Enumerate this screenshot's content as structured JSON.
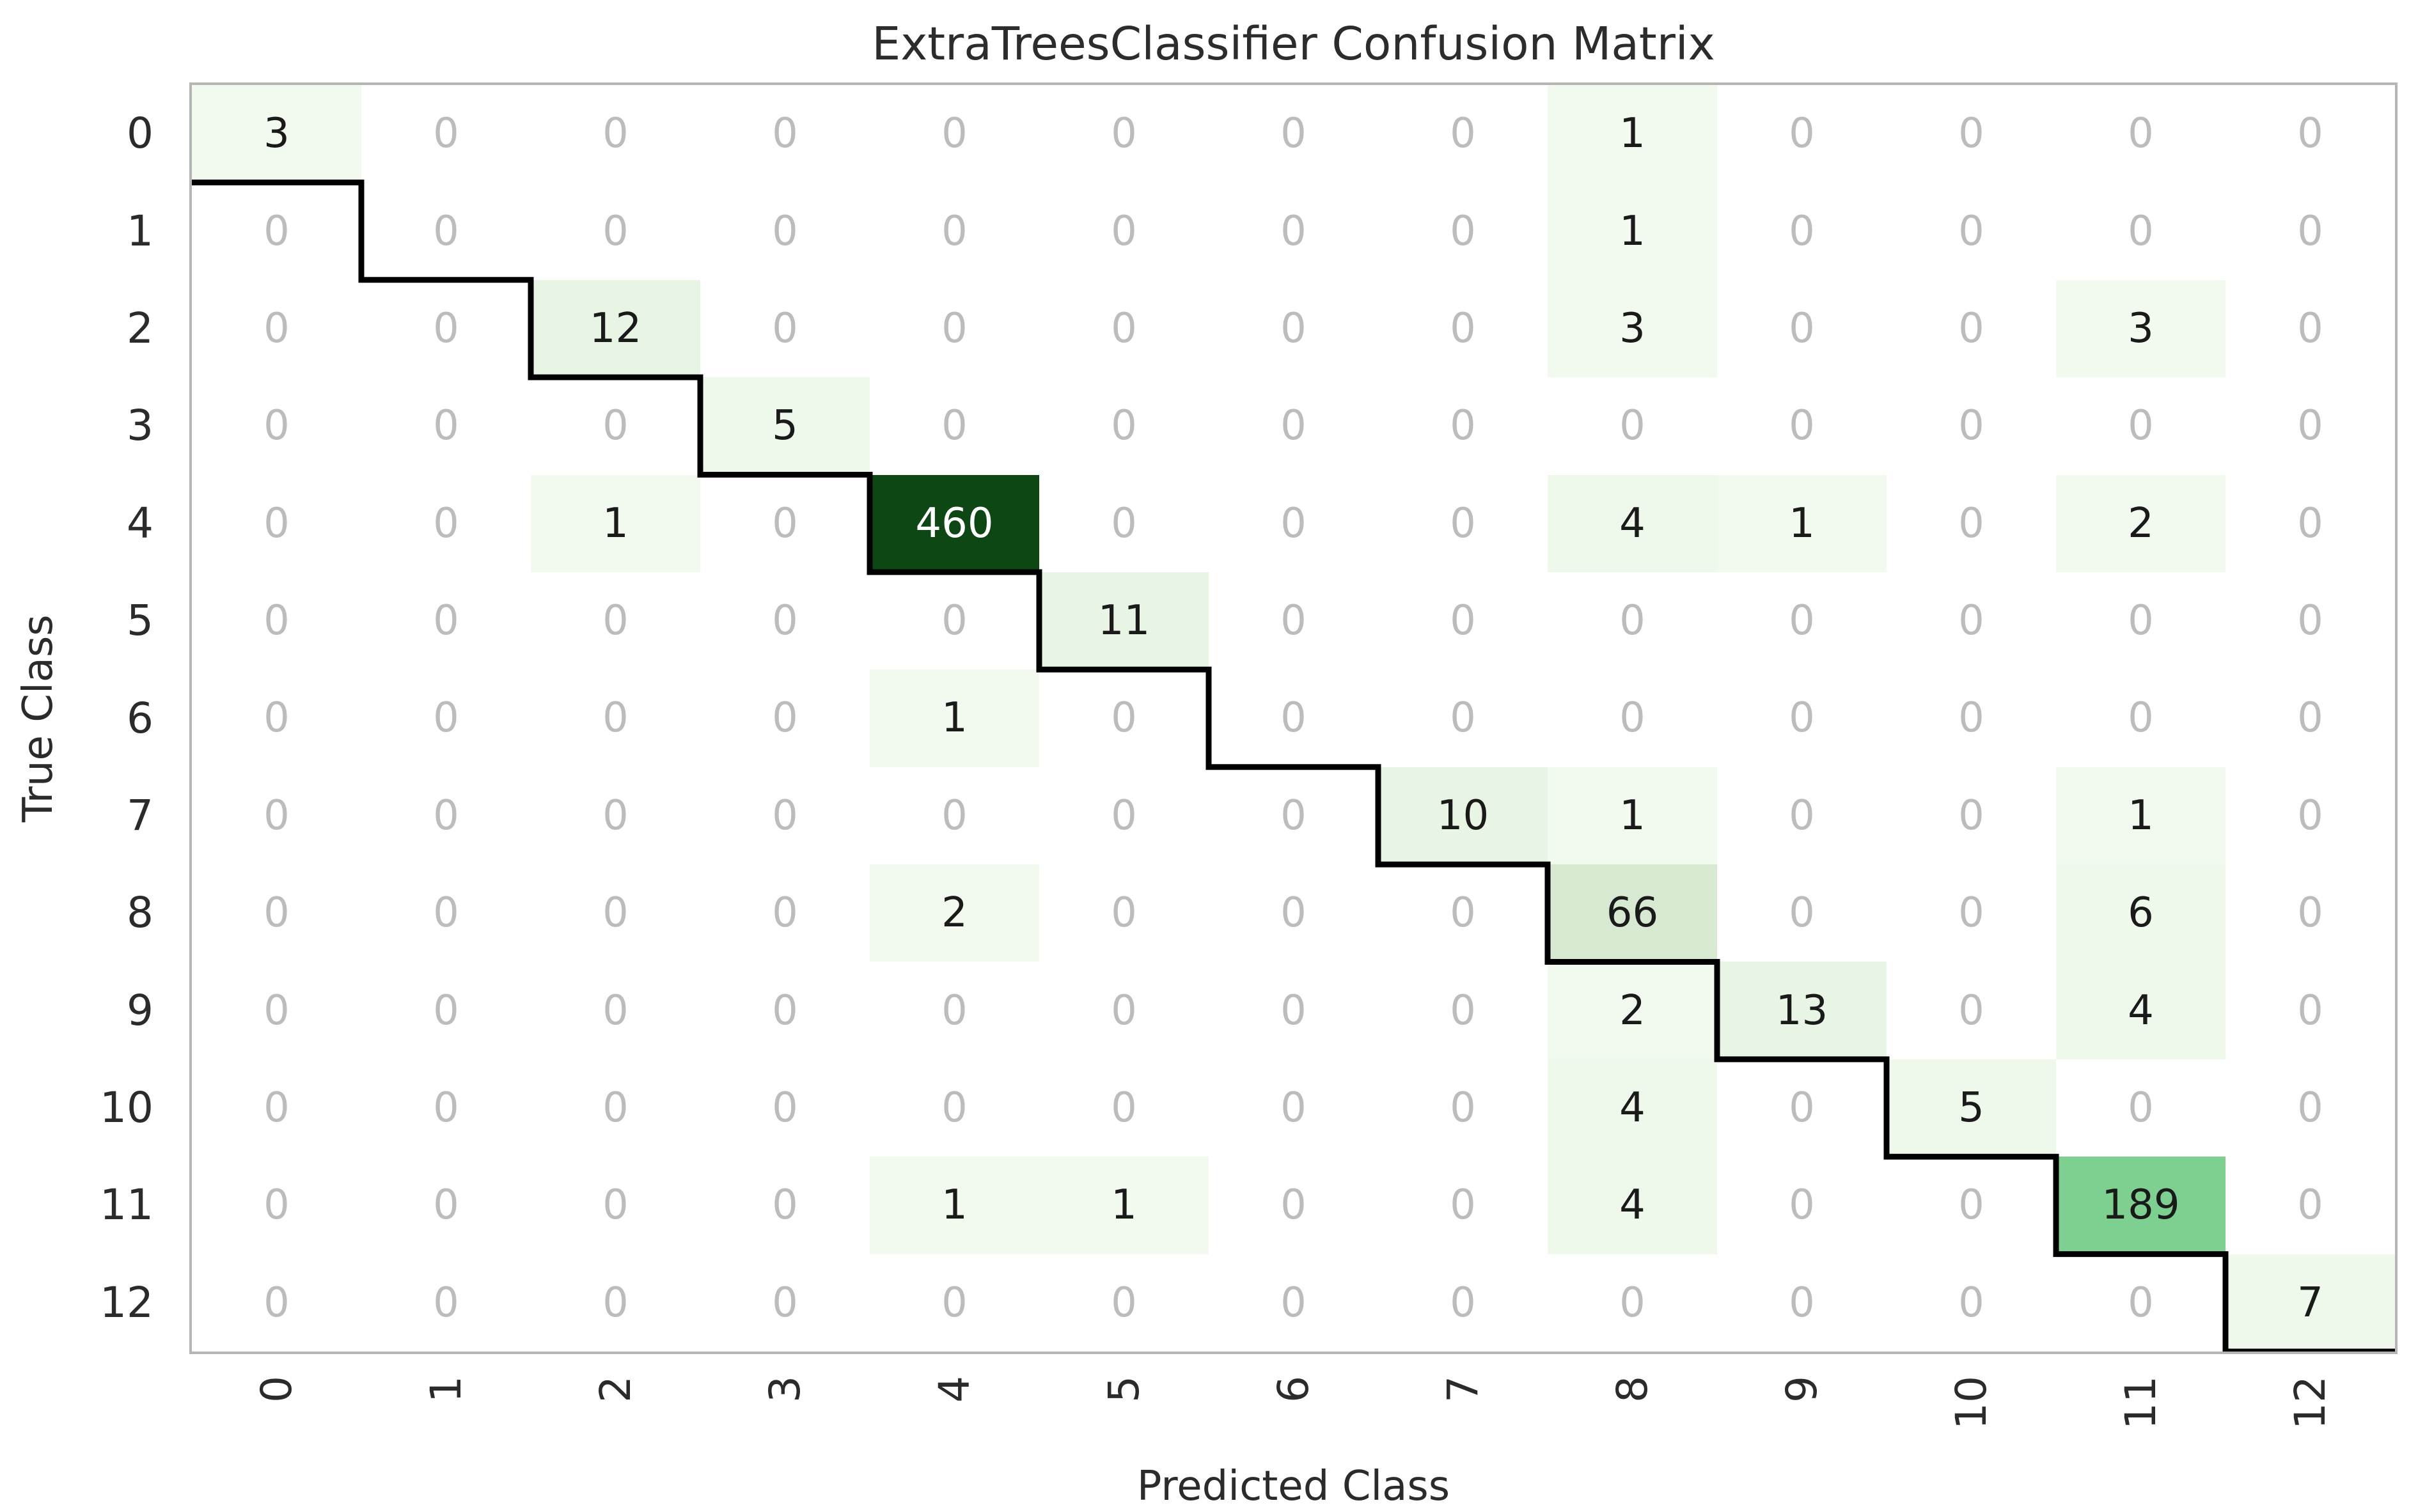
{
  "chart_data": {
    "type": "heatmap",
    "title": "ExtraTreesClassifier Confusion Matrix",
    "xlabel": "Predicted Class",
    "ylabel": "True Class",
    "x_tick_labels": [
      "0",
      "1",
      "2",
      "3",
      "4",
      "5",
      "6",
      "7",
      "8",
      "9",
      "10",
      "11",
      "12"
    ],
    "y_tick_labels": [
      "0",
      "1",
      "2",
      "3",
      "4",
      "5",
      "6",
      "7",
      "8",
      "9",
      "10",
      "11",
      "12"
    ],
    "matrix": [
      [
        3,
        0,
        0,
        0,
        0,
        0,
        0,
        0,
        1,
        0,
        0,
        0,
        0
      ],
      [
        0,
        0,
        0,
        0,
        0,
        0,
        0,
        0,
        1,
        0,
        0,
        0,
        0
      ],
      [
        0,
        0,
        12,
        0,
        0,
        0,
        0,
        0,
        3,
        0,
        0,
        3,
        0
      ],
      [
        0,
        0,
        0,
        5,
        0,
        0,
        0,
        0,
        0,
        0,
        0,
        0,
        0
      ],
      [
        0,
        0,
        1,
        0,
        460,
        0,
        0,
        0,
        4,
        1,
        0,
        2,
        0
      ],
      [
        0,
        0,
        0,
        0,
        0,
        11,
        0,
        0,
        0,
        0,
        0,
        0,
        0
      ],
      [
        0,
        0,
        0,
        0,
        1,
        0,
        0,
        0,
        0,
        0,
        0,
        0,
        0
      ],
      [
        0,
        0,
        0,
        0,
        0,
        0,
        0,
        10,
        1,
        0,
        0,
        1,
        0
      ],
      [
        0,
        0,
        0,
        0,
        2,
        0,
        0,
        0,
        66,
        0,
        0,
        6,
        0
      ],
      [
        0,
        0,
        0,
        0,
        0,
        0,
        0,
        0,
        2,
        13,
        0,
        4,
        0
      ],
      [
        0,
        0,
        0,
        0,
        0,
        0,
        0,
        0,
        4,
        0,
        5,
        0,
        0
      ],
      [
        0,
        0,
        0,
        0,
        1,
        1,
        0,
        0,
        4,
        0,
        0,
        189,
        0
      ],
      [
        0,
        0,
        0,
        0,
        0,
        0,
        0,
        0,
        0,
        0,
        0,
        0,
        7
      ]
    ],
    "colormap": "Greens",
    "layout": {
      "grid": "off",
      "legend": "none",
      "x_tick_rotation_deg": 90
    },
    "colors": {
      "zero_text": "#bcbcbc",
      "value_text": "#1a1a1a",
      "max_value_text": "#ffffff",
      "spine": "#b5b5b5",
      "diagonal_line": "#000000",
      "background": "#ffffff",
      "fill_bands": [
        {
          "max": 0,
          "bg": "#ffffff"
        },
        {
          "max": 3,
          "bg": "#f2faf0"
        },
        {
          "max": 7,
          "bg": "#eef8eb"
        },
        {
          "max": 13,
          "bg": "#e9f5e4"
        },
        {
          "max": 66,
          "bg": "#d7e9d1"
        },
        {
          "max": 189,
          "bg": "#7dd08f"
        },
        {
          "max": 460,
          "bg": "#0c4714"
        }
      ]
    }
  }
}
